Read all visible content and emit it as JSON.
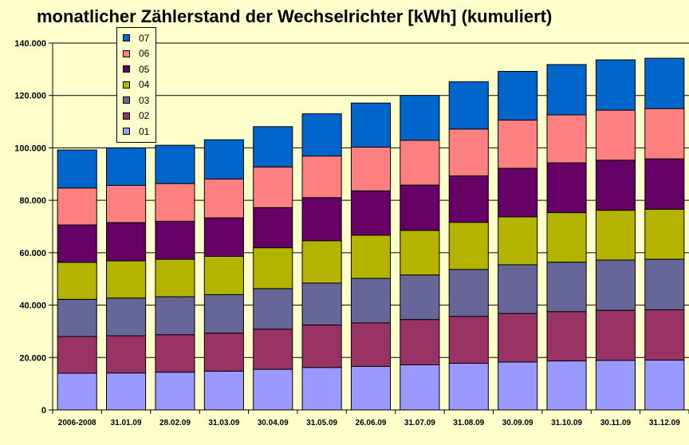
{
  "chart_data": {
    "type": "bar",
    "stacked": true,
    "title": "monatlicher Zählerstand der Wechselrichter [kWh] (kumuliert)",
    "xlabel": "",
    "ylabel": "",
    "ylim": [
      0,
      140000
    ],
    "yticks": [
      "0",
      "20.000",
      "40.000",
      "60.000",
      "80.000",
      "100.000",
      "120.000",
      "140.000"
    ],
    "grid": true,
    "legend_position": "top-left",
    "categories": [
      "2006-2008",
      "31.01.09",
      "28.02.09",
      "31.03.09",
      "30.04.09",
      "31.05.09",
      "26.06.09",
      "31.07.09",
      "31.08.09",
      "30.09.09",
      "31.10.09",
      "30.11.09",
      "31.12.09"
    ],
    "series": [
      {
        "name": "01",
        "color": "#9999ff",
        "values": [
          14000,
          14100,
          14400,
          14800,
          15500,
          16200,
          16600,
          17200,
          17800,
          18300,
          18700,
          18900,
          19000
        ]
      },
      {
        "name": "02",
        "color": "#993366",
        "values": [
          14000,
          14200,
          14300,
          14500,
          15300,
          16200,
          16600,
          17300,
          17900,
          18500,
          18800,
          19100,
          19200
        ]
      },
      {
        "name": "03",
        "color": "#666699",
        "values": [
          14200,
          14400,
          14500,
          14700,
          15500,
          16000,
          17000,
          17000,
          17900,
          18600,
          18900,
          19200,
          19300
        ]
      },
      {
        "name": "04",
        "color": "#b3b300",
        "values": [
          14100,
          14200,
          14300,
          14600,
          15600,
          16200,
          16500,
          17000,
          18000,
          18300,
          18900,
          19000,
          19100
        ]
      },
      {
        "name": "05",
        "color": "#660066",
        "values": [
          14300,
          14600,
          14500,
          14700,
          15300,
          16400,
          16900,
          17300,
          17700,
          18500,
          19000,
          19100,
          19200
        ]
      },
      {
        "name": "06",
        "color": "#ff8080",
        "values": [
          14100,
          14200,
          14400,
          14800,
          15500,
          15900,
          16700,
          17100,
          17900,
          18400,
          18300,
          19100,
          19200
        ]
      },
      {
        "name": "07",
        "color": "#0066cc",
        "values": [
          14500,
          14300,
          14600,
          15000,
          15400,
          16100,
          16800,
          17100,
          18000,
          18600,
          19200,
          19200,
          19200
        ]
      }
    ]
  }
}
